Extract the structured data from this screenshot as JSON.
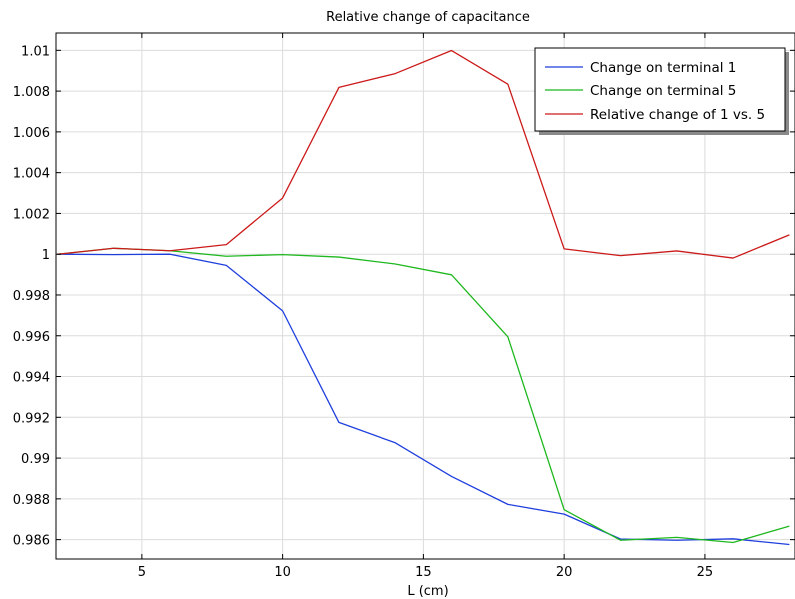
{
  "chart_data": {
    "type": "line",
    "title": "Relative change of capacitance",
    "xlabel": "L (cm)",
    "ylabel": "",
    "xlim": [
      1.95,
      28.2
    ],
    "ylim": [
      0.98505,
      1.01085
    ],
    "x_ticks": [
      5,
      10,
      15,
      20,
      25
    ],
    "x_tick_labels": [
      "5",
      "10",
      "15",
      "20",
      "25"
    ],
    "y_ticks": [
      0.986,
      0.988,
      0.99,
      0.992,
      0.994,
      0.996,
      0.998,
      1.0,
      1.002,
      1.004,
      1.006,
      1.008,
      1.01
    ],
    "y_tick_labels": [
      "0.986",
      "0.988",
      "0.99",
      "0.992",
      "0.994",
      "0.996",
      "0.998",
      "1",
      "1.002",
      "1.004",
      "1.006",
      "1.008",
      "1.01"
    ],
    "grid": true,
    "legend_position": "top-right",
    "x": [
      2,
      4,
      6,
      8,
      10,
      12,
      14,
      16,
      18,
      20,
      22,
      24,
      26,
      28
    ],
    "series": [
      {
        "name": "Change on terminal 1",
        "color": "#1f3fdd",
        "values": [
          1.0,
          0.99998,
          1.0,
          0.99945,
          0.99722,
          0.99175,
          0.99075,
          0.9891,
          0.98773,
          0.98725,
          0.98603,
          0.98597,
          0.98604,
          0.98576
        ]
      },
      {
        "name": "Change on terminal 5",
        "color": "#1fb81f",
        "values": [
          1.0,
          1.00029,
          1.00017,
          0.9999,
          0.99998,
          0.99986,
          0.99952,
          0.99899,
          0.99595,
          0.98747,
          0.98597,
          0.98611,
          0.98586,
          0.98666
        ]
      },
      {
        "name": "Relative change of 1 vs. 5",
        "color": "#cc1a1a",
        "values": [
          1.0,
          1.00029,
          1.00017,
          1.00047,
          1.00276,
          1.00818,
          1.00886,
          1.00999,
          1.00834,
          1.00026,
          0.99993,
          1.00016,
          0.99981,
          1.00095
        ]
      }
    ]
  }
}
